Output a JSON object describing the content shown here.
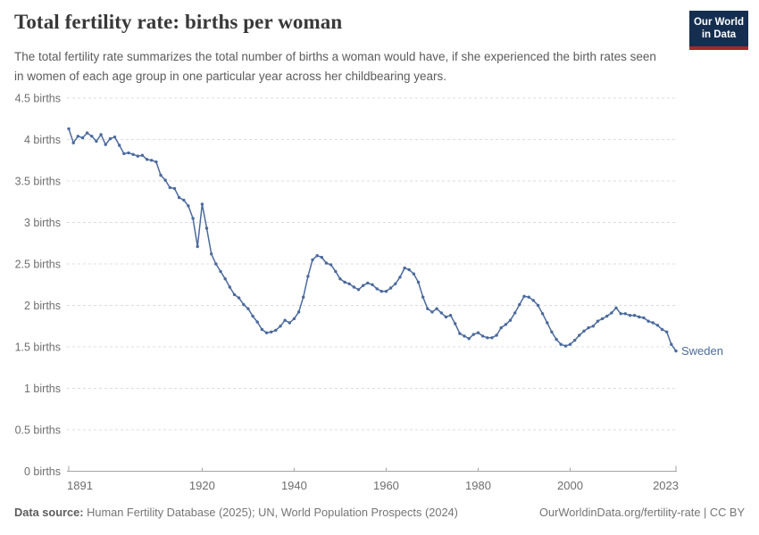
{
  "header": {
    "title": "Total fertility rate: births per woman",
    "subtitle": "The total fertility rate summarizes the total number of births a woman would have, if she experienced the birth rates seen in women of each age group in one particular year across her childbearing years.",
    "logo": {
      "line1": "Our World",
      "line2": "in Data"
    }
  },
  "colors": {
    "line": "#4c6a9c",
    "grid": "#dcdcdc",
    "axis": "#a5a5a5",
    "logo_bg": "#152e4f",
    "logo_stripe": "#a3282d"
  },
  "chart_data": {
    "type": "line",
    "title": "Total fertility rate: births per woman",
    "xlabel": "",
    "ylabel": "births",
    "x_range": [
      1891,
      2023
    ],
    "ylim": [
      0,
      4.5
    ],
    "grid": true,
    "legend_position": "end-of-line-label",
    "y_ticks": [
      {
        "value": 0,
        "label": "0 births"
      },
      {
        "value": 0.5,
        "label": "0.5 births"
      },
      {
        "value": 1,
        "label": "1 births"
      },
      {
        "value": 1.5,
        "label": "1.5 births"
      },
      {
        "value": 2,
        "label": "2 births"
      },
      {
        "value": 2.5,
        "label": "2.5 births"
      },
      {
        "value": 3,
        "label": "3 births"
      },
      {
        "value": 3.5,
        "label": "3.5 births"
      },
      {
        "value": 4,
        "label": "4 births"
      },
      {
        "value": 4.5,
        "label": "4.5 births"
      }
    ],
    "x_ticks": [
      {
        "value": 1891,
        "label": "1891"
      },
      {
        "value": 1920,
        "label": "1920"
      },
      {
        "value": 1940,
        "label": "1940"
      },
      {
        "value": 1960,
        "label": "1960"
      },
      {
        "value": 1980,
        "label": "1980"
      },
      {
        "value": 2000,
        "label": "2000"
      },
      {
        "value": 2023,
        "label": "2023"
      }
    ],
    "series": [
      {
        "name": "Sweden",
        "color": "#4c6a9c",
        "start_year": 1891,
        "values": [
          4.13,
          3.96,
          4.04,
          4.02,
          4.08,
          4.04,
          3.98,
          4.06,
          3.94,
          4.01,
          4.03,
          3.93,
          3.83,
          3.84,
          3.82,
          3.8,
          3.81,
          3.76,
          3.75,
          3.73,
          3.57,
          3.51,
          3.42,
          3.41,
          3.3,
          3.27,
          3.2,
          3.05,
          2.71,
          3.22,
          2.93,
          2.62,
          2.5,
          2.41,
          2.32,
          2.22,
          2.13,
          2.09,
          2.01,
          1.96,
          1.87,
          1.8,
          1.71,
          1.67,
          1.68,
          1.7,
          1.75,
          1.82,
          1.79,
          1.84,
          1.92,
          2.1,
          2.35,
          2.55,
          2.6,
          2.58,
          2.51,
          2.49,
          2.41,
          2.32,
          2.28,
          2.26,
          2.22,
          2.19,
          2.24,
          2.27,
          2.25,
          2.2,
          2.17,
          2.17,
          2.21,
          2.26,
          2.34,
          2.45,
          2.43,
          2.38,
          2.28,
          2.1,
          1.96,
          1.92,
          1.96,
          1.91,
          1.86,
          1.88,
          1.78,
          1.66,
          1.63,
          1.6,
          1.65,
          1.67,
          1.63,
          1.61,
          1.61,
          1.64,
          1.73,
          1.77,
          1.82,
          1.91,
          2.01,
          2.11,
          2.1,
          2.06,
          2.0,
          1.9,
          1.79,
          1.68,
          1.59,
          1.53,
          1.51,
          1.53,
          1.58,
          1.64,
          1.69,
          1.73,
          1.75,
          1.81,
          1.84,
          1.87,
          1.91,
          1.97,
          1.9,
          1.9,
          1.88,
          1.88,
          1.86,
          1.85,
          1.81,
          1.79,
          1.76,
          1.71,
          1.68,
          1.53,
          1.45
        ]
      }
    ]
  },
  "footer": {
    "source_label": "Data source:",
    "source_text": " Human Fertility Database (2025); UN, World Population Prospects (2024)",
    "link_text": "OurWorldinData.org/fertility-rate | CC BY"
  }
}
